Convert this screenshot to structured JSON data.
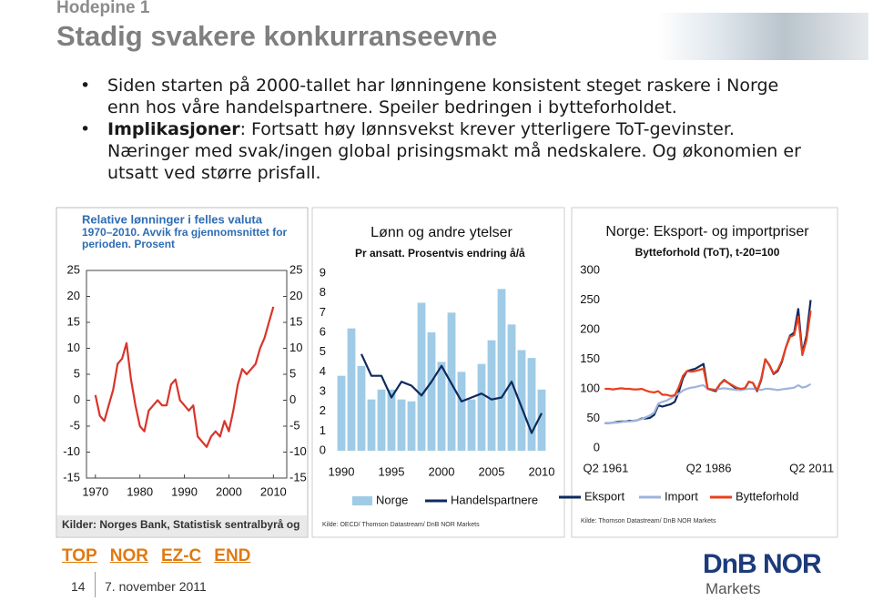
{
  "header": {
    "kicker": "Hodepine 1",
    "title": "Stadig svakere konkurranseevne"
  },
  "bullets": [
    {
      "text": "Siden starten på 2000-tallet har lønningene konsistent steget raskere i Norge enn hos våre handelspartnere. Speiler bedringen i bytteforholdet."
    },
    {
      "bold": "Implikasjoner",
      "text": ": Fortsatt høy lønnsvekst krever ytterligere ToT-gevinster. Næringer med svak/ingen global prisingsmakt må nedskalere. Og økonomien er utsatt ved større prisfall."
    }
  ],
  "chart_data": [
    {
      "type": "line",
      "title": "Relative lønninger i felles valuta",
      "subtitle": [
        "1970–2010. Avvik fra gjennomsnittet for",
        "perioden. Prosent"
      ],
      "source": "Kilder: Norges Bank, Statistisk sentralbyrå og",
      "x": [
        1970,
        1971,
        1972,
        1973,
        1974,
        1975,
        1976,
        1977,
        1978,
        1979,
        1980,
        1981,
        1982,
        1983,
        1984,
        1985,
        1986,
        1987,
        1988,
        1989,
        1990,
        1991,
        1992,
        1993,
        1994,
        1995,
        1996,
        1997,
        1998,
        1999,
        2000,
        2001,
        2002,
        2003,
        2004,
        2005,
        2006,
        2007,
        2008,
        2009,
        2010
      ],
      "series": [
        {
          "color": "#d9342b",
          "values": [
            1,
            -3,
            -4,
            -1,
            2,
            7,
            8,
            11,
            4,
            -1,
            -5,
            -6,
            -2,
            -1,
            0,
            -1,
            -1,
            3,
            4,
            0,
            -1,
            -2,
            -1,
            -7,
            -8,
            -9,
            -7,
            -6,
            -7,
            -4,
            -6,
            -2,
            3,
            6,
            5,
            6,
            7,
            10,
            12,
            15,
            18
          ]
        }
      ],
      "xlim": [
        1968,
        2013
      ],
      "xticks": [
        1970,
        1980,
        1990,
        2000,
        2010
      ],
      "ylim": [
        -15,
        25
      ],
      "yticks": [
        -15,
        -10,
        -5,
        0,
        5,
        10,
        15,
        20,
        25
      ],
      "y_axis_both_sides": true,
      "tick_marks": true
    },
    {
      "type": "bar",
      "title": "Lønn og andre ytelser",
      "subtitle": [
        "Pr ansatt. Prosentvis endring å/å"
      ],
      "source": "Kilde: OECD/ Thomson Datastream/ DnB NOR Markets",
      "x": [
        1990,
        1991,
        1992,
        1993,
        1994,
        1995,
        1996,
        1997,
        1998,
        1999,
        2000,
        2001,
        2002,
        2003,
        2004,
        2005,
        2006,
        2007,
        2008,
        2009,
        2010
      ],
      "series": [
        {
          "name": "Norge",
          "type": "bar",
          "color": "#9fcbe6",
          "values": [
            3.8,
            6.2,
            4.3,
            2.6,
            3.1,
            3.1,
            2.6,
            2.5,
            7.5,
            6.0,
            4.5,
            7.0,
            4.0,
            2.6,
            4.4,
            5.6,
            8.2,
            6.4,
            5.1,
            4.7,
            3.1
          ]
        },
        {
          "name": "Handelspartnere",
          "type": "line",
          "color": "#0f2a5e",
          "values": [
            null,
            null,
            4.9,
            3.8,
            3.8,
            2.7,
            3.5,
            3.3,
            2.8,
            3.5,
            4.3,
            3.4,
            2.5,
            2.7,
            2.9,
            2.6,
            2.7,
            3.5,
            2.2,
            0.9,
            1.9
          ]
        }
      ],
      "xlim": [
        1989.5,
        2011
      ],
      "xticks": [
        1990,
        1995,
        2000,
        2005,
        2010
      ],
      "ylim": [
        0,
        9
      ],
      "yticks": [
        0,
        1,
        2,
        3,
        4,
        5,
        6,
        7,
        8,
        9
      ]
    },
    {
      "type": "line",
      "title": "Norge: Eksport- og importpriser",
      "subtitle": [
        "Bytteforhold (ToT), t-20=100"
      ],
      "source": "Kilde: Thomson Datastream/ DnB NOR Markets",
      "x": [
        1961,
        1962,
        1963,
        1964,
        1965,
        1966,
        1967,
        1968,
        1969,
        1970,
        1971,
        1972,
        1973,
        1974,
        1975,
        1976,
        1977,
        1978,
        1979,
        1980,
        1981,
        1982,
        1983,
        1984,
        1985,
        1986,
        1987,
        1988,
        1989,
        1990,
        1991,
        1992,
        1993,
        1994,
        1995,
        1996,
        1997,
        1998,
        1999,
        2000,
        2001,
        2002,
        2003,
        2004,
        2005,
        2006,
        2007,
        2008,
        2009,
        2010,
        2011
      ],
      "series": [
        {
          "name": "Eksport",
          "color": "#0f2a5e",
          "values": [
            42,
            42,
            43,
            44,
            45,
            45,
            46,
            46,
            47,
            50,
            50,
            51,
            56,
            72,
            70,
            72,
            74,
            78,
            95,
            118,
            130,
            132,
            134,
            138,
            142,
            100,
            98,
            96,
            108,
            115,
            110,
            105,
            100,
            98,
            100,
            112,
            110,
            96,
            115,
            150,
            140,
            125,
            130,
            145,
            170,
            190,
            195,
            235,
            160,
            190,
            250
          ]
        },
        {
          "name": "Import",
          "color": "#9fb3dc",
          "values": [
            42,
            42,
            43,
            43,
            44,
            45,
            45,
            46,
            47,
            49,
            52,
            55,
            60,
            75,
            78,
            80,
            84,
            88,
            92,
            97,
            100,
            102,
            103,
            105,
            106,
            100,
            99,
            98,
            100,
            101,
            100,
            99,
            98,
            98,
            99,
            100,
            100,
            99,
            98,
            100,
            100,
            99,
            98,
            99,
            100,
            101,
            102,
            106,
            102,
            104,
            108
          ]
        },
        {
          "name": "Bytteforhold",
          "color": "#e8401c",
          "values": [
            100,
            100,
            99,
            100,
            101,
            100,
            100,
            99,
            99,
            100,
            97,
            95,
            94,
            96,
            90,
            90,
            88,
            89,
            103,
            122,
            130,
            129,
            130,
            132,
            134,
            100,
            99,
            98,
            108,
            114,
            110,
            106,
            102,
            100,
            101,
            112,
            110,
            97,
            117,
            150,
            140,
            126,
            132,
            147,
            170,
            188,
            191,
            222,
            157,
            183,
            232
          ]
        }
      ],
      "xlim": [
        1960.5,
        2012
      ],
      "xticks": [
        {
          "value": 1961.25,
          "label": "Q2 1961"
        },
        {
          "value": 1986.25,
          "label": "Q2 1986"
        },
        {
          "value": 2011.25,
          "label": "Q2 2011"
        }
      ],
      "ylim": [
        0,
        300
      ],
      "yticks": [
        0,
        50,
        100,
        150,
        200,
        250,
        300
      ]
    }
  ],
  "nav": [
    "TOP",
    "NOR",
    "EZ-C",
    "END"
  ],
  "footer": {
    "page": "14",
    "date": "7. november 2011",
    "logo": "DnB NOR",
    "logo_sub": "Markets"
  }
}
